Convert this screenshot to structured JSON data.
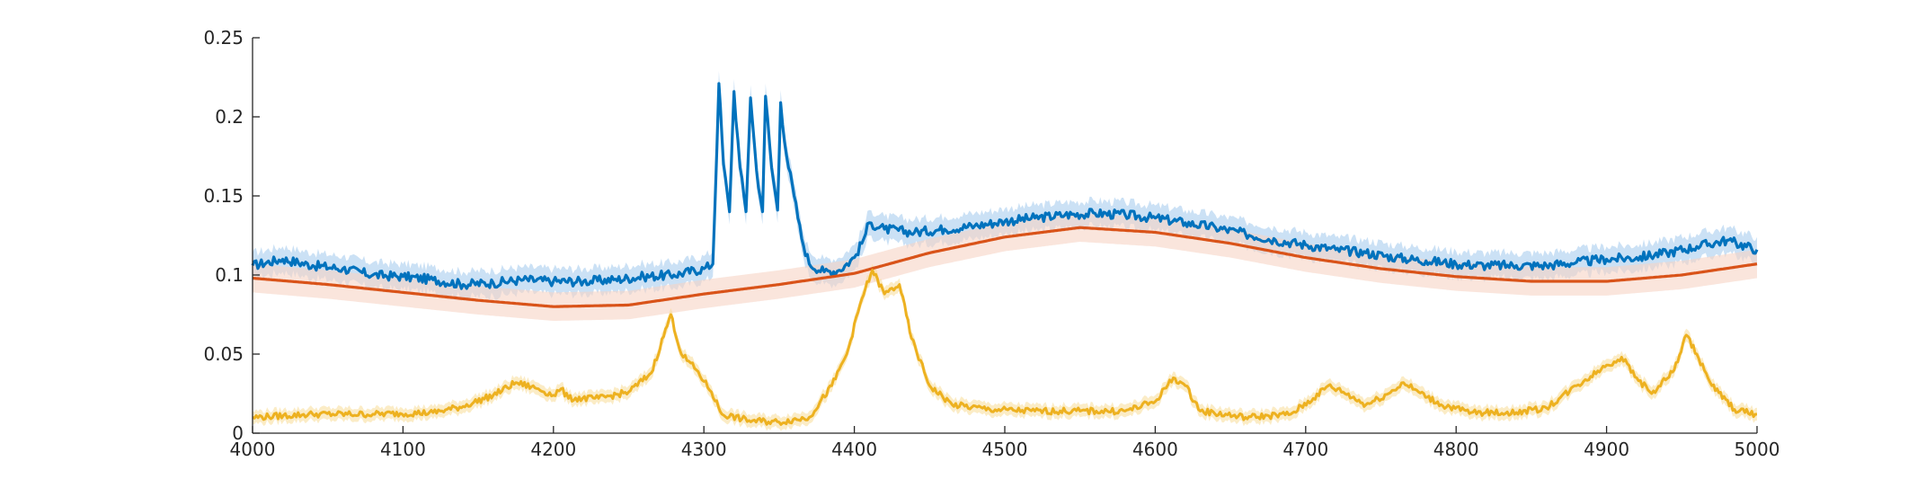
{
  "chart_data": {
    "type": "line",
    "title": "",
    "xlabel": "",
    "ylabel": "",
    "xlim": [
      4000,
      5000
    ],
    "ylim": [
      0,
      0.25
    ],
    "grid": false,
    "legend": "none",
    "x_ticks": [
      "4000",
      "4100",
      "4200",
      "4300",
      "4400",
      "4500",
      "4600",
      "4700",
      "4800",
      "4900",
      "5000"
    ],
    "y_ticks": [
      "0",
      "0.05",
      "0.1",
      "0.15",
      "0.2",
      "0.25"
    ],
    "series": [
      {
        "color": "#0072BD",
        "band_color": "#a8cdee",
        "band_halfwidth": 0.008,
        "points": [
          [
            4000,
            0.106
          ],
          [
            4020,
            0.11
          ],
          [
            4040,
            0.106
          ],
          [
            4060,
            0.104
          ],
          [
            4080,
            0.1
          ],
          [
            4100,
            0.099
          ],
          [
            4120,
            0.097
          ],
          [
            4140,
            0.094
          ],
          [
            4160,
            0.095
          ],
          [
            4180,
            0.097
          ],
          [
            4200,
            0.096
          ],
          [
            4220,
            0.096
          ],
          [
            4240,
            0.097
          ],
          [
            4260,
            0.099
          ],
          [
            4280,
            0.1
          ],
          [
            4300,
            0.104
          ],
          [
            4306,
            0.107
          ],
          [
            4310,
            0.221
          ],
          [
            4313,
            0.17
          ],
          [
            4317,
            0.14
          ],
          [
            4320,
            0.216
          ],
          [
            4324,
            0.168
          ],
          [
            4328,
            0.14
          ],
          [
            4331,
            0.212
          ],
          [
            4335,
            0.166
          ],
          [
            4339,
            0.14
          ],
          [
            4341,
            0.213
          ],
          [
            4345,
            0.168
          ],
          [
            4349,
            0.141
          ],
          [
            4351,
            0.209
          ],
          [
            4355,
            0.175
          ],
          [
            4360,
            0.15
          ],
          [
            4365,
            0.123
          ],
          [
            4370,
            0.107
          ],
          [
            4380,
            0.102
          ],
          [
            4390,
            0.103
          ],
          [
            4400,
            0.111
          ],
          [
            4405,
            0.12
          ],
          [
            4410,
            0.133
          ],
          [
            4420,
            0.129
          ],
          [
            4440,
            0.127
          ],
          [
            4460,
            0.129
          ],
          [
            4480,
            0.131
          ],
          [
            4500,
            0.134
          ],
          [
            4520,
            0.136
          ],
          [
            4540,
            0.138
          ],
          [
            4560,
            0.139
          ],
          [
            4580,
            0.138
          ],
          [
            4600,
            0.136
          ],
          [
            4620,
            0.133
          ],
          [
            4640,
            0.13
          ],
          [
            4660,
            0.126
          ],
          [
            4680,
            0.122
          ],
          [
            4700,
            0.119
          ],
          [
            4720,
            0.116
          ],
          [
            4740,
            0.114
          ],
          [
            4760,
            0.111
          ],
          [
            4780,
            0.109
          ],
          [
            4800,
            0.107
          ],
          [
            4820,
            0.106
          ],
          [
            4840,
            0.106
          ],
          [
            4860,
            0.106
          ],
          [
            4880,
            0.108
          ],
          [
            4900,
            0.11
          ],
          [
            4920,
            0.111
          ],
          [
            4940,
            0.114
          ],
          [
            4960,
            0.118
          ],
          [
            4980,
            0.122
          ],
          [
            5000,
            0.116
          ]
        ]
      },
      {
        "color": "#D95319",
        "band_color": "#f6d3c4",
        "band_halfwidth": 0.009,
        "points": [
          [
            4000,
            0.098
          ],
          [
            4050,
            0.094
          ],
          [
            4100,
            0.089
          ],
          [
            4150,
            0.084
          ],
          [
            4200,
            0.08
          ],
          [
            4250,
            0.081
          ],
          [
            4300,
            0.088
          ],
          [
            4350,
            0.094
          ],
          [
            4400,
            0.101
          ],
          [
            4450,
            0.114
          ],
          [
            4500,
            0.124
          ],
          [
            4550,
            0.13
          ],
          [
            4600,
            0.127
          ],
          [
            4650,
            0.12
          ],
          [
            4700,
            0.111
          ],
          [
            4750,
            0.104
          ],
          [
            4800,
            0.099
          ],
          [
            4850,
            0.096
          ],
          [
            4900,
            0.096
          ],
          [
            4950,
            0.1
          ],
          [
            5000,
            0.107
          ]
        ]
      },
      {
        "color": "#EDB120",
        "band_color": "#f7dd98",
        "band_halfwidth": 0.004,
        "points": [
          [
            4000,
            0.01
          ],
          [
            4040,
            0.012
          ],
          [
            4080,
            0.012
          ],
          [
            4120,
            0.013
          ],
          [
            4140,
            0.017
          ],
          [
            4160,
            0.024
          ],
          [
            4175,
            0.032
          ],
          [
            4190,
            0.028
          ],
          [
            4200,
            0.024
          ],
          [
            4205,
            0.028
          ],
          [
            4210,
            0.022
          ],
          [
            4230,
            0.022
          ],
          [
            4250,
            0.026
          ],
          [
            4265,
            0.038
          ],
          [
            4278,
            0.075
          ],
          [
            4285,
            0.05
          ],
          [
            4295,
            0.04
          ],
          [
            4305,
            0.026
          ],
          [
            4312,
            0.012
          ],
          [
            4330,
            0.008
          ],
          [
            4350,
            0.007
          ],
          [
            4370,
            0.01
          ],
          [
            4385,
            0.03
          ],
          [
            4395,
            0.05
          ],
          [
            4405,
            0.085
          ],
          [
            4412,
            0.103
          ],
          [
            4420,
            0.088
          ],
          [
            4430,
            0.094
          ],
          [
            4438,
            0.06
          ],
          [
            4450,
            0.03
          ],
          [
            4465,
            0.018
          ],
          [
            4490,
            0.015
          ],
          [
            4520,
            0.014
          ],
          [
            4550,
            0.014
          ],
          [
            4580,
            0.014
          ],
          [
            4600,
            0.02
          ],
          [
            4612,
            0.035
          ],
          [
            4620,
            0.03
          ],
          [
            4630,
            0.014
          ],
          [
            4660,
            0.01
          ],
          [
            4690,
            0.012
          ],
          [
            4705,
            0.022
          ],
          [
            4715,
            0.03
          ],
          [
            4725,
            0.026
          ],
          [
            4740,
            0.018
          ],
          [
            4755,
            0.025
          ],
          [
            4765,
            0.032
          ],
          [
            4775,
            0.026
          ],
          [
            4790,
            0.018
          ],
          [
            4810,
            0.013
          ],
          [
            4840,
            0.013
          ],
          [
            4860,
            0.016
          ],
          [
            4880,
            0.03
          ],
          [
            4900,
            0.043
          ],
          [
            4910,
            0.048
          ],
          [
            4920,
            0.035
          ],
          [
            4930,
            0.025
          ],
          [
            4945,
            0.04
          ],
          [
            4953,
            0.062
          ],
          [
            4960,
            0.05
          ],
          [
            4970,
            0.03
          ],
          [
            4985,
            0.015
          ],
          [
            5000,
            0.012
          ]
        ]
      }
    ]
  }
}
